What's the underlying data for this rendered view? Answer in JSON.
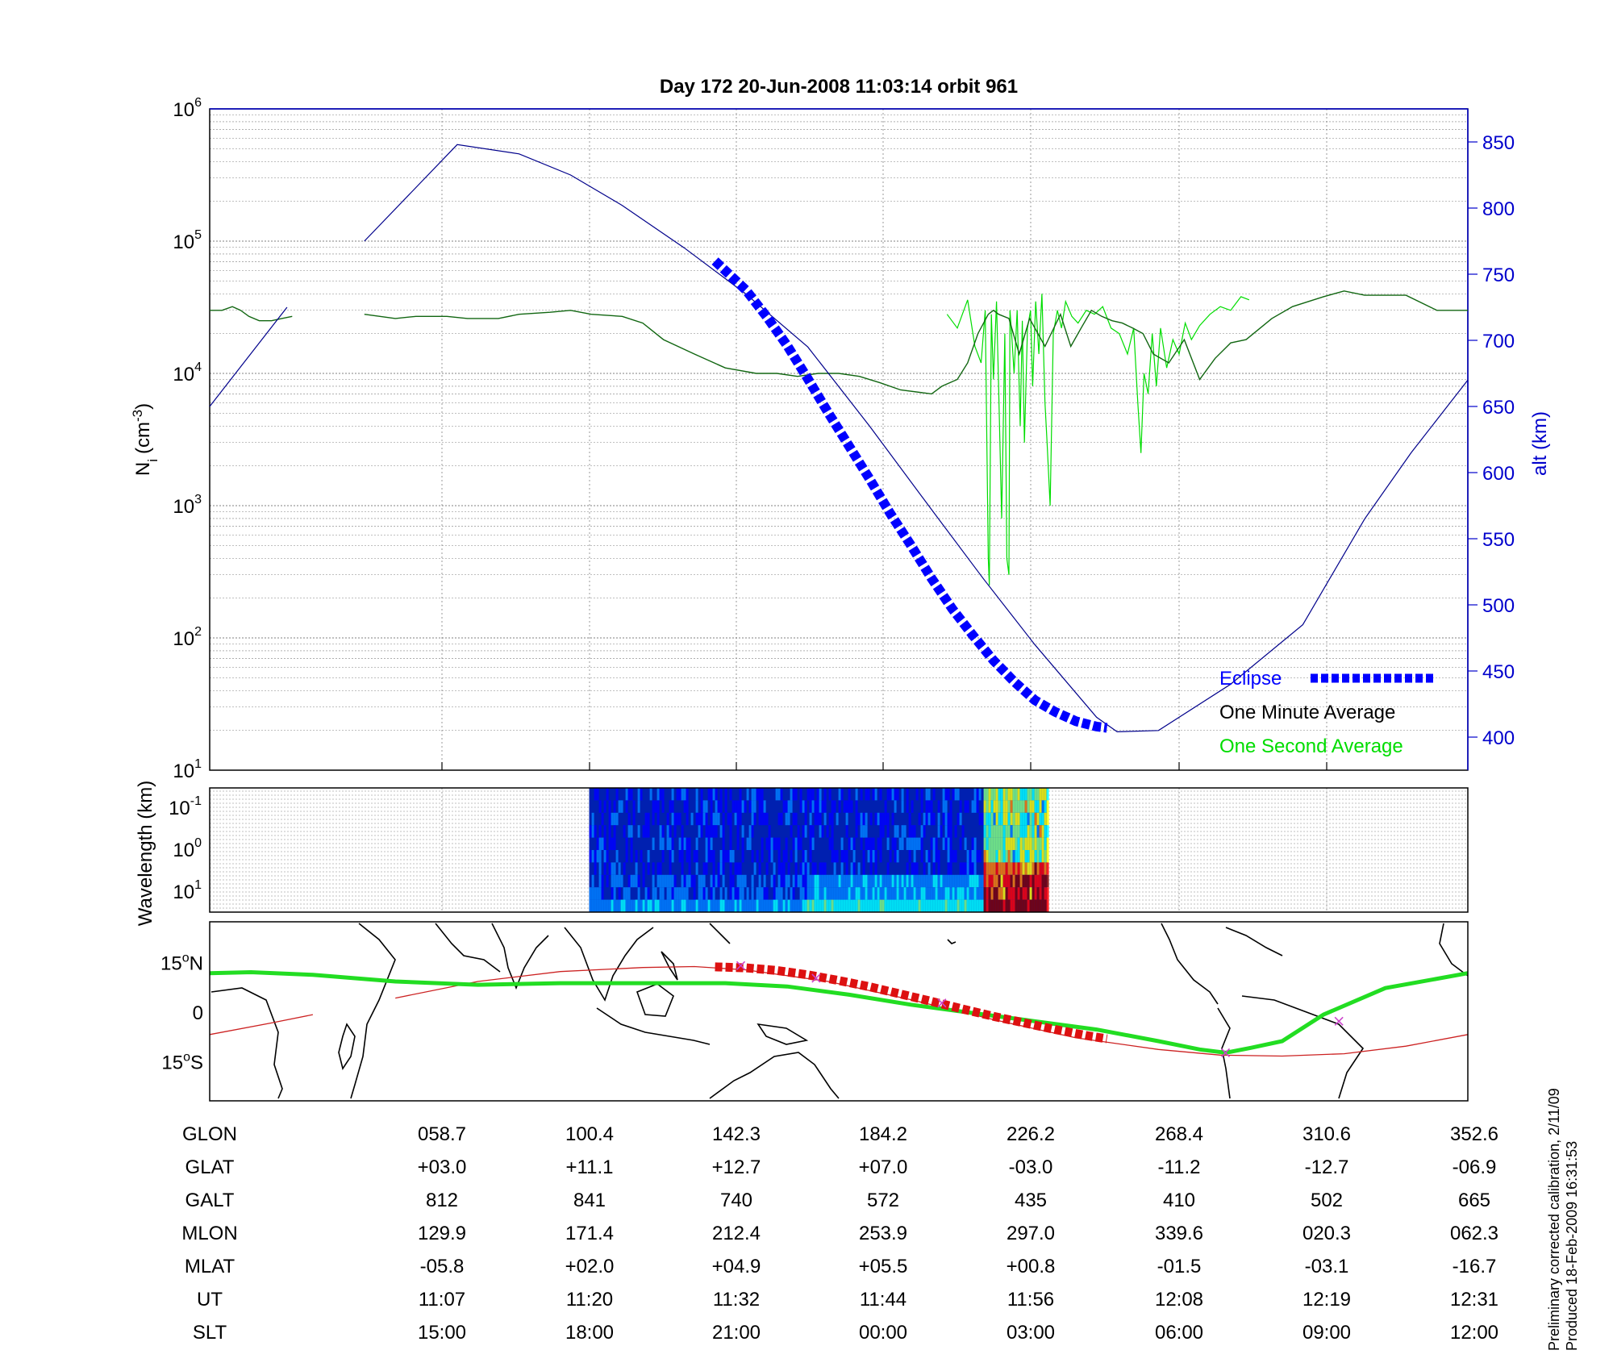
{
  "title": "Day 172  20-Jun-2008 11:03:14   orbit 961",
  "colors": {
    "eclipse": "#0000ff",
    "alt_line": "#00008b",
    "one_minute": "#000000",
    "one_second": "#00dd00",
    "track_green": "#22dd22",
    "track_red": "#cc2222",
    "magenta": "#cc44cc",
    "axis_right": "#0000cc",
    "grid": "#808080"
  },
  "chart_data": [
    {
      "type": "line",
      "name": "density-altitude",
      "ylabel_base": "N",
      "ylabel_sub": "i",
      "ylabel_unit_pre": "(cm",
      "ylabel_unit_sup": "-3",
      "ylabel_unit_post": ")",
      "y_scale": "log",
      "ylim": [
        10,
        1000000
      ],
      "y_ticks": [
        {
          "base": "10",
          "exp": "1"
        },
        {
          "base": "10",
          "exp": "2"
        },
        {
          "base": "10",
          "exp": "3"
        },
        {
          "base": "10",
          "exp": "4"
        },
        {
          "base": "10",
          "exp": "5"
        },
        {
          "base": "10",
          "exp": "6"
        }
      ],
      "y2label": "alt (km)",
      "y2lim": [
        375,
        875
      ],
      "y2_ticks": [
        400,
        450,
        500,
        550,
        600,
        650,
        700,
        750,
        800,
        850
      ],
      "grid": true,
      "legend_position": "bottom-right",
      "legend": [
        {
          "label": "Eclipse",
          "color": "#0000ff"
        },
        {
          "label": "One Minute Average",
          "color": "#000000"
        },
        {
          "label": "One Second Average",
          "color": "#00dd00"
        }
      ],
      "series": [
        {
          "name": "One Minute Average",
          "axis": "left",
          "x": [
            0,
            12,
            22,
            30,
            38,
            48,
            60,
            70,
            80,
            150,
            180,
            200,
            230,
            250,
            280,
            300,
            330,
            350,
            370,
            400,
            420,
            440,
            470,
            500,
            530,
            550,
            570,
            590,
            610,
            630,
            650,
            670,
            700,
            710,
            725,
            735,
            745,
            755,
            760,
            765,
            775,
            785,
            795,
            810,
            825,
            835,
            845,
            855,
            865,
            875,
            885,
            895,
            905,
            915,
            930,
            945,
            960,
            975,
            990,
            1005,
            1030,
            1050,
            1080,
            1100,
            1120,
            1160,
            1190,
            1220
          ],
          "y": [
            30000,
            30000,
            32000,
            30000,
            27000,
            25000,
            25000,
            26000,
            27000,
            28000,
            26000,
            27000,
            27000,
            26000,
            26000,
            28000,
            29000,
            30000,
            28000,
            27000,
            24000,
            18000,
            14000,
            11000,
            10000,
            10000,
            9500,
            10000,
            10000,
            9500,
            8500,
            7500,
            7000,
            8000,
            9000,
            12000,
            20000,
            28000,
            30000,
            28000,
            26000,
            14000,
            26000,
            16000,
            28000,
            16000,
            22000,
            30000,
            27000,
            25000,
            24000,
            22000,
            20000,
            14000,
            12000,
            18000,
            9000,
            13000,
            17000,
            18000,
            26000,
            32000,
            38000,
            42000,
            39000,
            39000,
            30000,
            30000
          ]
        },
        {
          "name": "One Second Average",
          "axis": "left",
          "x": [
            715,
            725,
            735,
            742,
            748,
            752,
            755,
            756,
            758,
            760,
            763,
            765,
            768,
            771,
            773,
            775,
            776,
            778,
            780,
            783,
            786,
            788,
            790,
            793,
            796,
            798,
            801,
            804,
            807,
            810,
            812,
            815,
            818,
            822,
            826,
            830,
            836,
            842,
            850,
            858,
            866,
            874,
            882,
            890,
            896,
            900,
            903,
            906,
            910,
            914,
            918,
            922,
            928,
            934,
            940,
            946,
            952,
            960,
            970,
            980,
            990,
            1000,
            1008
          ],
          "y": [
            28000,
            22000,
            36000,
            16000,
            12000,
            30000,
            400,
            250,
            28000,
            9000,
            35000,
            8000,
            800,
            20000,
            400,
            300,
            30000,
            18000,
            10000,
            30000,
            4000,
            25000,
            3000,
            22000,
            30000,
            8000,
            35000,
            14000,
            40000,
            6000,
            3000,
            1000,
            20000,
            30000,
            22000,
            35000,
            27000,
            24000,
            30000,
            28000,
            32000,
            22000,
            20000,
            14000,
            22000,
            6000,
            2500,
            10000,
            7000,
            20000,
            8000,
            22000,
            11000,
            18000,
            14000,
            24000,
            18000,
            23000,
            28000,
            32000,
            30000,
            38000,
            36000
          ]
        },
        {
          "name": "Altitude",
          "axis": "right",
          "x": [
            0,
            75,
            150,
            240,
            300,
            350,
            400,
            460,
            520,
            580,
            640,
            700,
            750,
            800,
            860,
            880,
            920,
            990,
            1060,
            1120,
            1165,
            1220
          ],
          "y": [
            650,
            725,
            775,
            848,
            841,
            825,
            802,
            770,
            735,
            695,
            635,
            572,
            520,
            470,
            415,
            404,
            405,
            440,
            485,
            565,
            615,
            670
          ],
          "breaks": [
            [
              75,
              150
            ]
          ]
        },
        {
          "name": "Eclipse",
          "axis": "right",
          "x": [
            490,
            520,
            540,
            560,
            580,
            600,
            620,
            640,
            660,
            680,
            700,
            720,
            740,
            760,
            780,
            800,
            820,
            840,
            860,
            870
          ],
          "y": [
            760,
            738,
            718,
            696,
            671,
            645,
            620,
            595,
            569,
            545,
            520,
            497,
            477,
            458,
            442,
            428,
            419,
            412,
            408,
            407
          ]
        }
      ]
    },
    {
      "type": "heatmap",
      "name": "wavelength-spectrogram",
      "ylabel": "Wavelength (km)",
      "y_scale": "log",
      "y_ticks": [
        {
          "base": "10",
          "exp": "-1"
        },
        {
          "base": "10",
          "exp": "0"
        },
        {
          "base": "10",
          "exp": "1"
        }
      ],
      "data_start": 368,
      "data_end": 812,
      "hot_start": 750,
      "hot_end": 812,
      "quiet_end": 578,
      "colormap": [
        "#00008f",
        "#0000ff",
        "#0080ff",
        "#00ffff",
        "#80ff80",
        "#ffff00",
        "#ff8000",
        "#ff0000",
        "#800000"
      ]
    },
    {
      "type": "scatter",
      "name": "ground-track-map",
      "y_ticks": [
        {
          "value": "15",
          "hemi": "N"
        },
        {
          "value": "0",
          "hemi": ""
        },
        {
          "value": "15",
          "hemi": "S"
        }
      ],
      "ylim": [
        -27,
        27
      ],
      "track_green": {
        "x": [
          0,
          40,
          100,
          180,
          260,
          340,
          420,
          500,
          560,
          620,
          680,
          740,
          800,
          860,
          920,
          960,
          985,
          1010,
          1040,
          1080,
          1140,
          1220
        ],
        "lat": [
          11.5,
          11.8,
          11.0,
          9.0,
          8.0,
          8.5,
          8.5,
          8.5,
          7.5,
          5.0,
          2.0,
          -0.5,
          -3.0,
          -5.5,
          -9.0,
          -11.5,
          -12.5,
          -11.0,
          -9.0,
          -1.0,
          7.0,
          11.5
        ]
      },
      "track_red": {
        "x": [
          0,
          60,
          100,
          180,
          260,
          340,
          420,
          470,
          520,
          600,
          680,
          760,
          840,
          920,
          980,
          1040,
          1100,
          1160,
          1220
        ],
        "lat": [
          -7.0,
          -3.5,
          -1.0,
          4.0,
          9.0,
          12.0,
          13.2,
          13.5,
          12.5,
          9.0,
          3.5,
          -2.5,
          -8.0,
          -11.5,
          -13.2,
          -13.5,
          -12.8,
          -10.5,
          -7.0
        ],
        "breaks": [
          [
            100,
            180
          ]
        ]
      },
      "eclipse_squares": {
        "x": [
          490,
          520,
          550,
          580,
          610,
          640,
          670,
          700,
          730,
          760,
          790,
          820,
          850,
          870
        ],
        "lat": [
          13.4,
          13.1,
          12.3,
          11.0,
          9.3,
          7.4,
          5.2,
          3.0,
          0.7,
          -1.5,
          -3.5,
          -5.5,
          -7.3,
          -8.3
        ]
      },
      "magenta_marks": {
        "x": [
          515,
          588,
          710,
          985,
          1095
        ],
        "lat": [
          13.8,
          10.0,
          2.5,
          -12.5,
          -3.0
        ]
      }
    }
  ],
  "ephemeris": {
    "labels": [
      "GLON",
      "GLAT",
      "GALT",
      "MLON",
      "MLAT",
      "UT",
      "SLT"
    ],
    "values": [
      [
        "058.7",
        "100.4",
        "142.3",
        "184.2",
        "226.2",
        "268.4",
        "310.6",
        "352.6"
      ],
      [
        "+03.0",
        "+11.1",
        "+12.7",
        "+07.0",
        "-03.0",
        "-11.2",
        "-12.7",
        "-06.9"
      ],
      [
        "812",
        "841",
        "740",
        "572",
        "435",
        "410",
        "502",
        "665"
      ],
      [
        "129.9",
        "171.4",
        "212.4",
        "253.9",
        "297.0",
        "339.6",
        "020.3",
        "062.3"
      ],
      [
        "-05.8",
        "+02.0",
        "+04.9",
        "+05.5",
        "+00.8",
        "-01.5",
        "-03.1",
        "-16.7"
      ],
      [
        "11:07",
        "11:20",
        "11:32",
        "11:44",
        "11:56",
        "12:08",
        "12:19",
        "12:31"
      ],
      [
        "15:00",
        "18:00",
        "21:00",
        "00:00",
        "03:00",
        "06:00",
        "09:00",
        "12:00"
      ]
    ]
  },
  "footnote": {
    "line1": "Preliminary corrected calibration, 2/11/09",
    "line2": "Produced 18-Feb-2009 16:31:53"
  }
}
